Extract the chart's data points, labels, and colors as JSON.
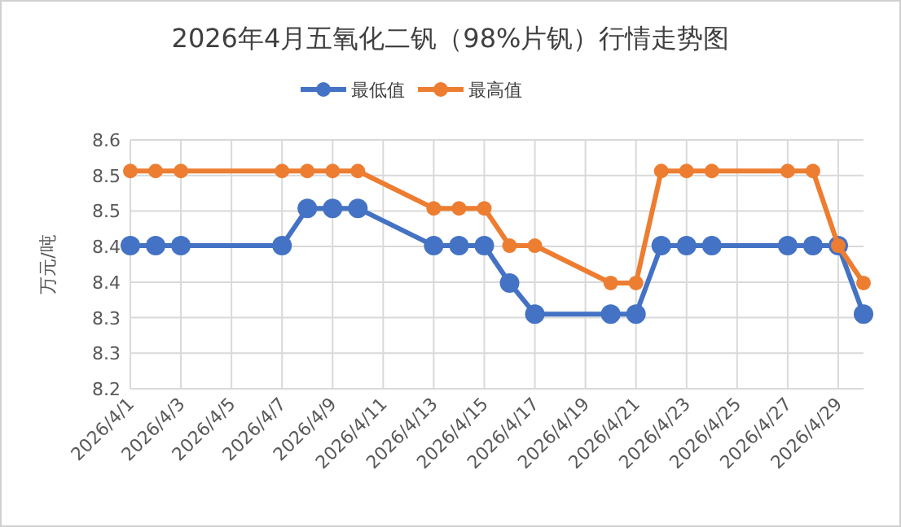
{
  "chart_data": {
    "type": "line",
    "title": "2026年4月五氧化二钒（98%片钒）行情走势图",
    "ylabel": "万元/吨",
    "x": [
      "2026-04-01",
      "2026-04-02",
      "2026-04-03",
      "2026-04-07",
      "2026-04-08",
      "2026-04-09",
      "2026-04-10",
      "2026-04-13",
      "2026-04-14",
      "2026-04-15",
      "2026-04-16",
      "2026-04-17",
      "2026-04-20",
      "2026-04-21",
      "2026-04-22",
      "2026-04-23",
      "2026-04-24",
      "2026-04-27",
      "2026-04-28",
      "2026-04-29",
      "2026-04-30"
    ],
    "series": [
      {
        "name": "最低值",
        "color": "#4472c4",
        "values": [
          8.43,
          8.43,
          8.43,
          8.43,
          8.49,
          8.49,
          8.49,
          8.43,
          8.43,
          8.43,
          8.37,
          8.32,
          8.32,
          8.32,
          8.43,
          8.43,
          8.43,
          8.43,
          8.43,
          8.43,
          8.32
        ]
      },
      {
        "name": "最高值",
        "color": "#ed7d31",
        "values": [
          8.55,
          8.55,
          8.55,
          8.55,
          8.55,
          8.55,
          8.55,
          8.49,
          8.49,
          8.49,
          8.43,
          8.43,
          8.37,
          8.37,
          8.55,
          8.55,
          8.55,
          8.55,
          8.55,
          8.43,
          8.37
        ]
      }
    ],
    "xlim": [
      "2026-04-01",
      "2026-04-30"
    ],
    "xticks": [
      {
        "value": "2026-04-01",
        "label": "2026/4/1"
      },
      {
        "value": "2026-04-03",
        "label": "2026/4/3"
      },
      {
        "value": "2026-04-05",
        "label": "2026/4/5"
      },
      {
        "value": "2026-04-07",
        "label": "2026/4/7"
      },
      {
        "value": "2026-04-09",
        "label": "2026/4/9"
      },
      {
        "value": "2026-04-11",
        "label": "2026/4/11"
      },
      {
        "value": "2026-04-13",
        "label": "2026/4/13"
      },
      {
        "value": "2026-04-15",
        "label": "2026/4/15"
      },
      {
        "value": "2026-04-17",
        "label": "2026/4/17"
      },
      {
        "value": "2026-04-19",
        "label": "2026/4/19"
      },
      {
        "value": "2026-04-21",
        "label": "2026/4/21"
      },
      {
        "value": "2026-04-23",
        "label": "2026/4/23"
      },
      {
        "value": "2026-04-25",
        "label": "2026/4/25"
      },
      {
        "value": "2026-04-27",
        "label": "2026/4/27"
      },
      {
        "value": "2026-04-29",
        "label": "2026/4/29"
      }
    ],
    "ylim": [
      8.2,
      8.6
    ],
    "yticks": [
      8.2,
      {
        "value": 8.2571,
        "label": "8.3"
      },
      {
        "value": 8.3143,
        "label": "8.3"
      },
      {
        "value": 8.3714,
        "label": "8.4"
      },
      {
        "value": 8.4286,
        "label": "8.4"
      },
      {
        "value": 8.4857,
        "label": "8.5"
      },
      {
        "value": 8.5429,
        "label": "8.5"
      },
      8.6
    ],
    "grid": true,
    "legend": "top",
    "marker": "circle",
    "line_style": "solid"
  }
}
